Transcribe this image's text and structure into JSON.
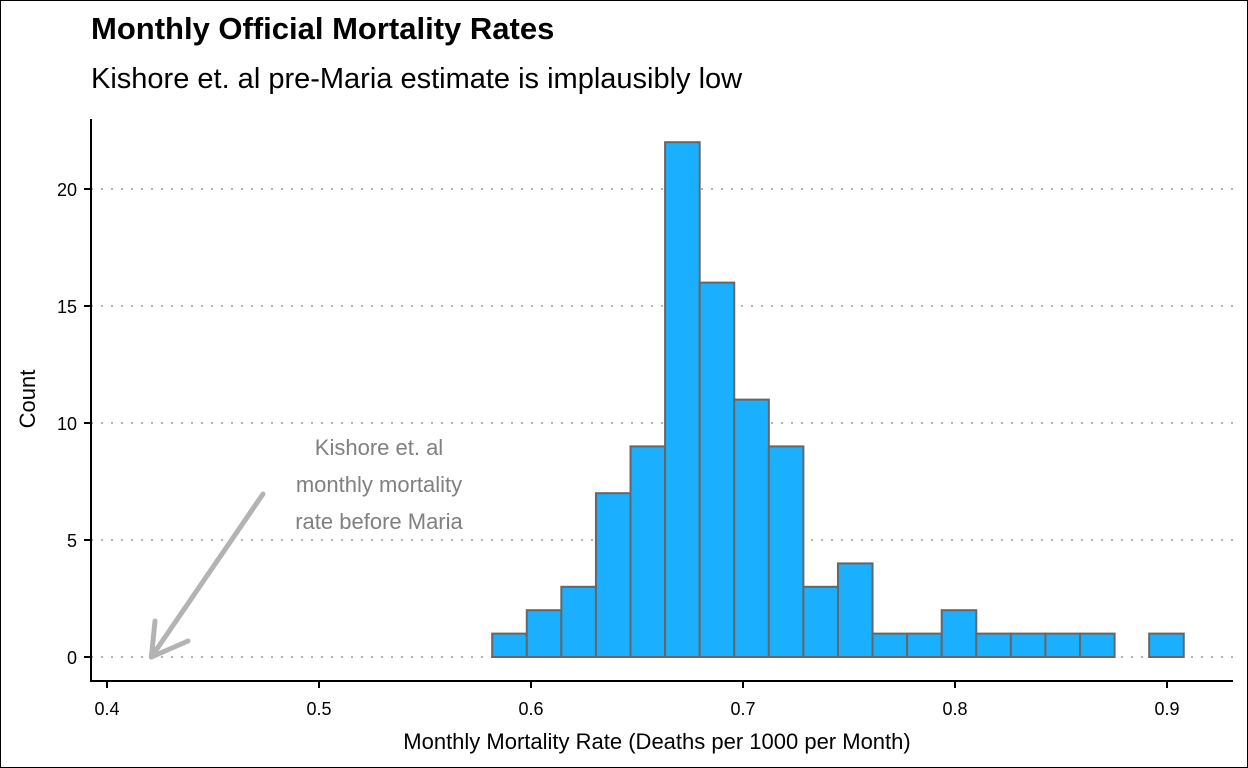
{
  "chart_data": {
    "type": "bar",
    "title": "Monthly Official Mortality Rates",
    "subtitle": "Kishore et. al pre-Maria estimate is implausibly low",
    "xlabel": "Monthly Mortality Rate (Deaths per 1000 per Month)",
    "ylabel": "Count",
    "xlim": [
      0.4,
      0.92
    ],
    "ylim": [
      0,
      22
    ],
    "xticks": [
      "0.4",
      "0.5",
      "0.6",
      "0.7",
      "0.8",
      "0.9"
    ],
    "yticks": [
      "0",
      "5",
      "10",
      "15",
      "20"
    ],
    "grid": "horizontal dotted",
    "bin_start": 0.4186,
    "bin_width": 0.01631,
    "counts": [
      0,
      0,
      0,
      0,
      0,
      0,
      0,
      0,
      0,
      0,
      1,
      2,
      3,
      7,
      9,
      22,
      16,
      11,
      9,
      3,
      4,
      1,
      1,
      2,
      1,
      1,
      1,
      1,
      0,
      1
    ],
    "colors": {
      "fill": "#1ab0ff",
      "edge": "#666666",
      "arrow": "#b3b3b3",
      "annotation": "#808080",
      "grid": "#b3b3b3"
    },
    "annotation": {
      "lines": [
        "Kishore et. al",
        "monthly mortality",
        "rate before Maria"
      ],
      "points_to_x": 0.42,
      "points_to_y": 0
    }
  }
}
